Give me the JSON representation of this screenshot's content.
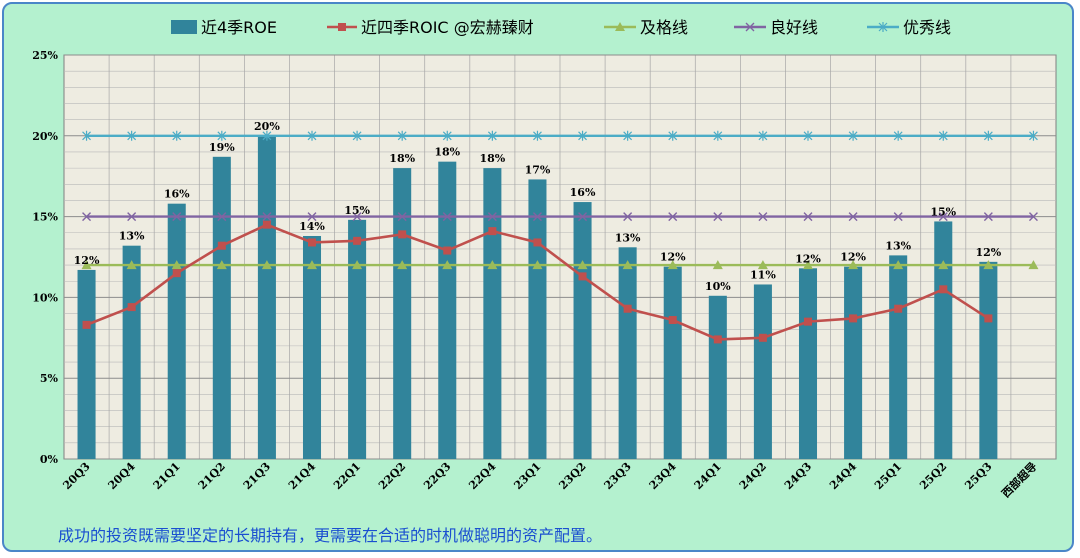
{
  "footer_note": "成功的投资既需要坚定的长期持有，更需要在合适的时机做聪明的资产配置。",
  "chart_data": {
    "type": "bar",
    "categories": [
      "20Q3",
      "20Q4",
      "21Q1",
      "21Q2",
      "21Q3",
      "21Q4",
      "22Q1",
      "22Q2",
      "22Q3",
      "22Q4",
      "23Q1",
      "23Q2",
      "23Q3",
      "23Q4",
      "24Q1",
      "24Q2",
      "24Q3",
      "24Q4",
      "25Q1",
      "25Q2",
      "25Q3",
      "西部超导"
    ],
    "ylim": [
      0,
      25
    ],
    "yticks": [
      0,
      5,
      10,
      15,
      20,
      25
    ],
    "ytick_suffix": "%",
    "grid": true,
    "legend_position": "top",
    "series": [
      {
        "name": "近4季ROE",
        "type": "bar",
        "color": "#31849b",
        "values": [
          11.7,
          13.2,
          15.8,
          18.7,
          20.0,
          13.8,
          14.8,
          18.0,
          18.4,
          18.0,
          17.3,
          15.9,
          13.1,
          11.9,
          10.1,
          10.8,
          11.8,
          11.9,
          12.6,
          14.7,
          12.2,
          null
        ],
        "labels": [
          "12%",
          "13%",
          "16%",
          "19%",
          "20%",
          "14%",
          "15%",
          "18%",
          "18%",
          "18%",
          "17%",
          "16%",
          "13%",
          "12%",
          "10%",
          "11%",
          "12%",
          "12%",
          "13%",
          "15%",
          "12%",
          ""
        ]
      },
      {
        "name": "近四季ROIC",
        "type": "line",
        "color": "#c0504d",
        "marker": "square",
        "values": [
          8.3,
          9.4,
          11.5,
          13.2,
          14.5,
          13.4,
          13.5,
          13.9,
          12.9,
          14.1,
          13.4,
          11.3,
          9.3,
          8.6,
          7.4,
          7.5,
          8.5,
          8.7,
          9.3,
          10.5,
          8.7,
          null
        ]
      },
      {
        "name": "及格线",
        "type": "line",
        "color": "#9bbb59",
        "marker": "triangle",
        "values": [
          12,
          12,
          12,
          12,
          12,
          12,
          12,
          12,
          12,
          12,
          12,
          12,
          12,
          12,
          12,
          12,
          12,
          12,
          12,
          12,
          12,
          12
        ]
      },
      {
        "name": "良好线",
        "type": "line",
        "color": "#8064a2",
        "marker": "x",
        "values": [
          15,
          15,
          15,
          15,
          15,
          15,
          15,
          15,
          15,
          15,
          15,
          15,
          15,
          15,
          15,
          15,
          15,
          15,
          15,
          15,
          15,
          15
        ]
      },
      {
        "name": "优秀线",
        "type": "line",
        "color": "#4bacc6",
        "marker": "star",
        "values": [
          20,
          20,
          20,
          20,
          20,
          20,
          20,
          20,
          20,
          20,
          20,
          20,
          20,
          20,
          20,
          20,
          20,
          20,
          20,
          20,
          20,
          20
        ]
      }
    ],
    "legend_extra_text": "@宏赫臻财"
  }
}
